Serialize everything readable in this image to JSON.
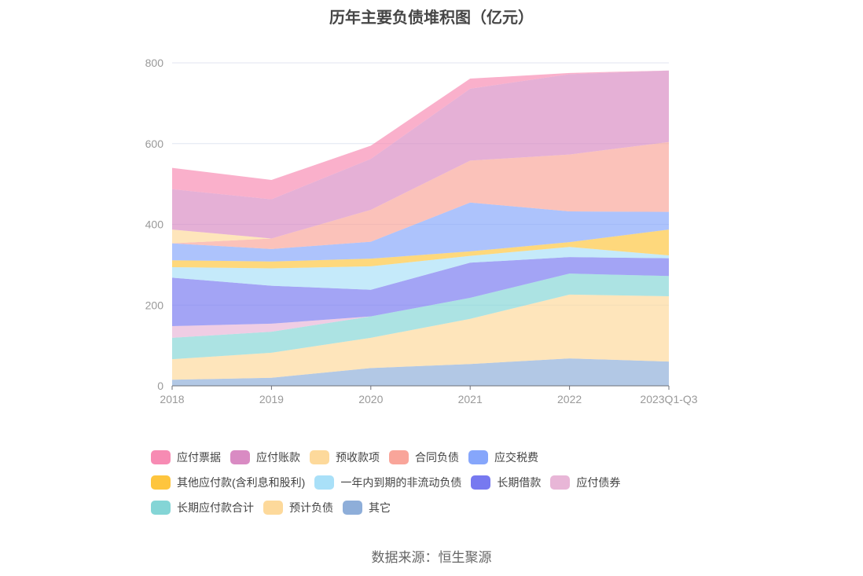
{
  "chart_data": {
    "type": "area",
    "stacked": true,
    "title": "历年主要负债堆积图（亿元）",
    "xlabel": "",
    "ylabel": "",
    "ylim": [
      0,
      800
    ],
    "yticks": [
      0,
      200,
      400,
      600,
      800
    ],
    "grid": true,
    "legend_position": "bottom",
    "categories": [
      "2018",
      "2019",
      "2020",
      "2021",
      "2022",
      "2023Q1-Q3"
    ],
    "series": [
      {
        "name": "其它",
        "color": "#8eaed9",
        "values": [
          15,
          20,
          44,
          54,
          68,
          60
        ]
      },
      {
        "name": "预计负债",
        "color": "#fdd99b",
        "values": [
          51,
          62,
          75,
          112,
          158,
          162
        ]
      },
      {
        "name": "长期应付款合计",
        "color": "#84d5d6",
        "values": [
          53,
          52,
          53,
          52,
          52,
          50
        ]
      },
      {
        "name": "应付债券",
        "color": "#e8b6d7",
        "values": [
          29,
          20,
          0,
          0,
          0,
          0
        ]
      },
      {
        "name": "长期借款",
        "color": "#7779f0",
        "values": [
          120,
          94,
          66,
          87,
          41,
          44
        ]
      },
      {
        "name": "一年内到期的非流动负债",
        "color": "#a9e0f8",
        "values": [
          26,
          43,
          58,
          17,
          25,
          7
        ]
      },
      {
        "name": "其他应付款(含利息和股利)",
        "color": "#fec53e",
        "values": [
          17,
          17,
          19,
          11,
          12,
          64
        ]
      },
      {
        "name": "应交税费",
        "color": "#86a6fb",
        "values": [
          42,
          31,
          42,
          121,
          76,
          44
        ]
      },
      {
        "name": "合同负债",
        "color": "#f9a59a",
        "values": [
          0,
          26,
          79,
          104,
          141,
          173
        ]
      },
      {
        "name": "预收款项",
        "color": "#fdd99b",
        "values": [
          34,
          0,
          0,
          0,
          0,
          0
        ]
      },
      {
        "name": "应付账款",
        "color": "#d98bc3",
        "values": [
          100,
          97,
          126,
          178,
          199,
          177
        ]
      },
      {
        "name": "应付票据",
        "color": "#f78bb3",
        "values": [
          53,
          48,
          33,
          25,
          3,
          0
        ]
      }
    ],
    "legend_order": [
      "应付票据",
      "应付账款",
      "预收款项",
      "合同负债",
      "应交税费",
      "其他应付款(含利息和股利)",
      "一年内到期的非流动负债",
      "长期借款",
      "应付债券",
      "长期应付款合计",
      "预计负债",
      "其它"
    ]
  },
  "source": "数据来源：恒生聚源"
}
